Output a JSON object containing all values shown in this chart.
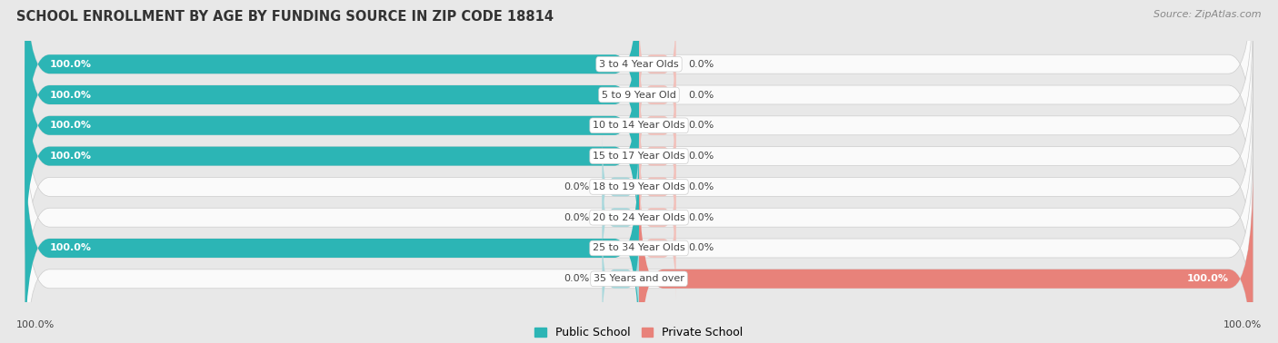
{
  "title": "SCHOOL ENROLLMENT BY AGE BY FUNDING SOURCE IN ZIP CODE 18814",
  "source": "Source: ZipAtlas.com",
  "categories": [
    "3 to 4 Year Olds",
    "5 to 9 Year Old",
    "10 to 14 Year Olds",
    "15 to 17 Year Olds",
    "18 to 19 Year Olds",
    "20 to 24 Year Olds",
    "25 to 34 Year Olds",
    "35 Years and over"
  ],
  "public_values": [
    100.0,
    100.0,
    100.0,
    100.0,
    0.0,
    0.0,
    100.0,
    0.0
  ],
  "private_values": [
    0.0,
    0.0,
    0.0,
    0.0,
    0.0,
    0.0,
    0.0,
    100.0
  ],
  "public_color": "#2CB5B5",
  "private_color": "#E8827A",
  "public_color_light": "#A8D8DC",
  "private_color_light": "#F2C0BA",
  "fig_bg_color": "#E8E8E8",
  "bar_bg_color": "#F0F0F0",
  "row_bg_color": "#FAFAFA",
  "label_white": "#FFFFFF",
  "label_dark": "#444444",
  "title_color": "#333333",
  "source_color": "#888888",
  "title_fontsize": 10.5,
  "source_fontsize": 8,
  "cat_fontsize": 8,
  "val_fontsize": 8,
  "axis_label_left": "100.0%",
  "axis_label_right": "100.0%",
  "legend_pub": "Public School",
  "legend_priv": "Private School"
}
